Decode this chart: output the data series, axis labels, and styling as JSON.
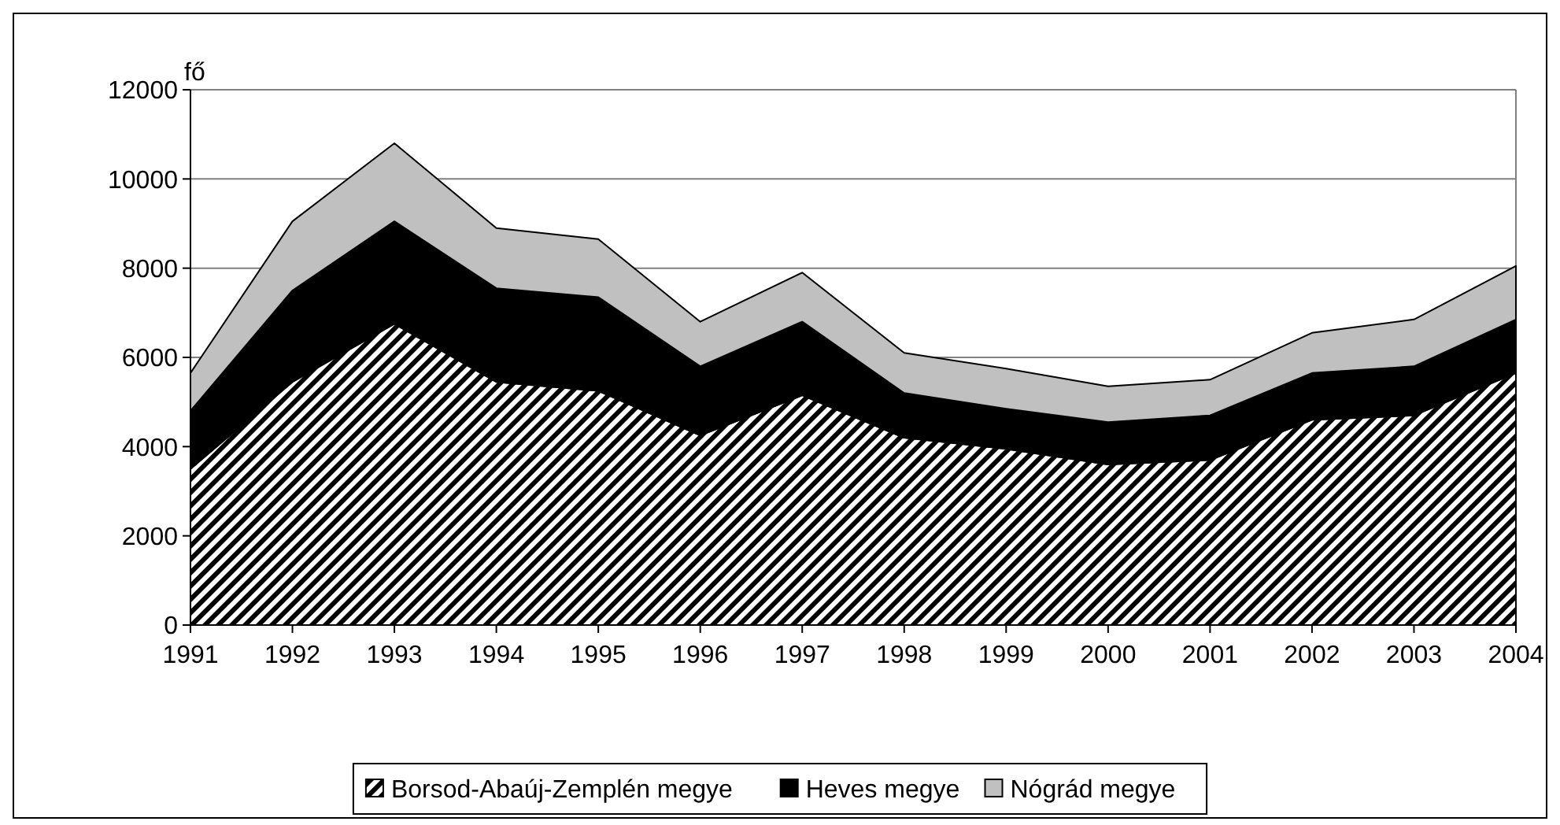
{
  "chart_data": {
    "type": "area",
    "stacked": true,
    "ylabel": "fő",
    "categories": [
      "1991",
      "1992",
      "1993",
      "1994",
      "1995",
      "1996",
      "1997",
      "1998",
      "1999",
      "2000",
      "2001",
      "2002",
      "2003",
      "2004"
    ],
    "series": [
      {
        "name": "Borsod-Abaúj-Zemplén megye",
        "color": "#000000",
        "values": [
          3500,
          5450,
          6750,
          5450,
          5250,
          4250,
          5150,
          4200,
          3950,
          3600,
          3700,
          4600,
          4700,
          5650
        ]
      },
      {
        "name": "Heves megye",
        "color": "#000000",
        "values": [
          1300,
          2050,
          2300,
          2100,
          2100,
          1550,
          1650,
          1000,
          900,
          950,
          1000,
          1050,
          1100,
          1200
        ]
      },
      {
        "name": "Nógrád megye",
        "color": "#c0c0c0",
        "values": [
          850,
          1550,
          1750,
          1350,
          1300,
          1000,
          1100,
          900,
          900,
          800,
          800,
          900,
          1050,
          1200
        ]
      }
    ],
    "ylim": [
      0,
      12000
    ],
    "yticks": [
      0,
      2000,
      4000,
      6000,
      8000,
      10000,
      12000
    ],
    "grid": "y",
    "legend": "bottom"
  }
}
